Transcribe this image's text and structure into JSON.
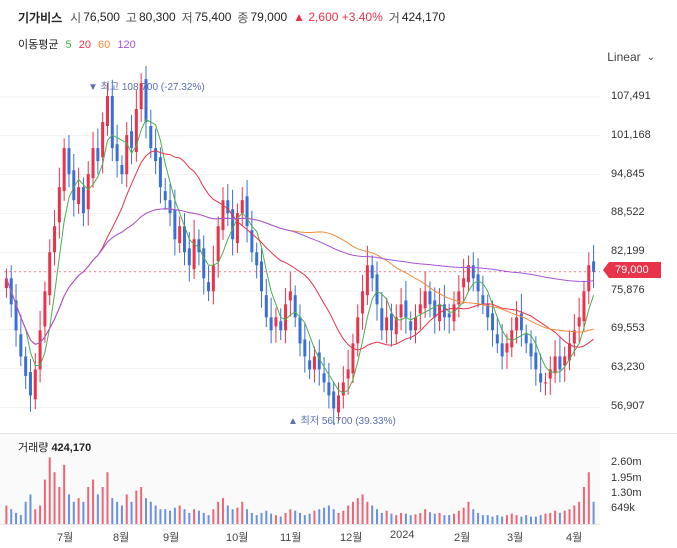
{
  "header": {
    "name": "기가비스",
    "open_label": "시",
    "open": "76,500",
    "high_label": "고",
    "high": "80,300",
    "low_label": "저",
    "low": "75,400",
    "close_label": "종",
    "close": "79,000",
    "change": "▲ 2,600 +3.40%",
    "volume_label": "거",
    "volume": "424,170"
  },
  "ma": {
    "label": "이동평균",
    "p5": "5",
    "p20": "20",
    "p60": "60",
    "p120": "120",
    "colors": {
      "p5": "#4caf50",
      "p20": "#e8334a",
      "p60": "#f08c3c",
      "p120": "#a457d8"
    }
  },
  "scale_selector": "Linear",
  "price_tag": "79,000",
  "y_axis": [
    "107,491",
    "101,168",
    "94,845",
    "88,522",
    "82,199",
    "75,876",
    "69,553",
    "63,230",
    "56,907"
  ],
  "annotations": {
    "high": "▼ 최고 108,700 (-27.32%)",
    "low": "▲ 최저 56,700 (39.33%)"
  },
  "volume": {
    "title": "거래량",
    "value": "424,170",
    "axis": [
      "2.60m",
      "1.95m",
      "1.30m",
      "649k"
    ]
  },
  "x_axis": [
    "7월",
    "8월",
    "9월",
    "10월",
    "11월",
    "12월",
    "2024",
    "2월",
    "3월",
    "4월"
  ],
  "chart_data": {
    "type": "candlestick",
    "y_range": [
      55000,
      110000
    ],
    "up_color": "#e8334a",
    "down_color": "#3b6fd4",
    "close": [
      78000,
      74000,
      70000,
      66000,
      63000,
      60000,
      64000,
      70000,
      76000,
      82000,
      86000,
      92000,
      98000,
      94000,
      90000,
      92000,
      88000,
      94000,
      98000,
      96000,
      102000,
      106000,
      98000,
      96000,
      94000,
      100000,
      98000,
      104000,
      108000,
      102000,
      98000,
      96000,
      92000,
      90000,
      88000,
      84000,
      86000,
      82000,
      80000,
      84000,
      82000,
      78000,
      76000,
      80000,
      86000,
      90000,
      88000,
      84000,
      88000,
      90000,
      86000,
      82000,
      80000,
      76000,
      72000,
      70000,
      72000,
      70000,
      74000,
      76000,
      72000,
      68000,
      66000,
      64000,
      66000,
      64000,
      62000,
      60000,
      58000,
      60000,
      62000,
      64000,
      68000,
      72000,
      76000,
      80000,
      78000,
      74000,
      70000,
      72000,
      70000,
      72000,
      74000,
      72000,
      70000,
      72000,
      74000,
      76000,
      74000,
      72000,
      74000,
      72000,
      72000,
      74000,
      76000,
      78000,
      80000,
      78000,
      76000,
      74000,
      72000,
      70000,
      68000,
      66000,
      68000,
      70000,
      72000,
      70000,
      68000,
      66000,
      64000,
      62000,
      62000,
      64000,
      66000,
      64000,
      66000,
      68000,
      70000,
      72000,
      76000,
      80000,
      79000
    ],
    "volume": [
      0.25,
      0.2,
      0.15,
      0.12,
      0.3,
      0.4,
      0.2,
      0.25,
      0.6,
      0.9,
      0.7,
      0.5,
      0.8,
      0.4,
      0.3,
      0.35,
      0.3,
      0.5,
      0.6,
      0.4,
      0.5,
      0.7,
      0.35,
      0.3,
      0.25,
      0.4,
      0.3,
      0.45,
      0.5,
      0.35,
      0.3,
      0.25,
      0.2,
      0.2,
      0.18,
      0.22,
      0.25,
      0.2,
      0.15,
      0.2,
      0.18,
      0.15,
      0.12,
      0.2,
      0.3,
      0.35,
      0.25,
      0.2,
      0.22,
      0.3,
      0.2,
      0.15,
      0.12,
      0.15,
      0.18,
      0.14,
      0.12,
      0.1,
      0.15,
      0.2,
      0.18,
      0.15,
      0.12,
      0.14,
      0.18,
      0.2,
      0.22,
      0.25,
      0.2,
      0.15,
      0.18,
      0.25,
      0.3,
      0.35,
      0.4,
      0.3,
      0.25,
      0.2,
      0.15,
      0.18,
      0.14,
      0.12,
      0.15,
      0.14,
      0.12,
      0.13,
      0.15,
      0.2,
      0.16,
      0.14,
      0.15,
      0.12,
      0.12,
      0.14,
      0.18,
      0.22,
      0.3,
      0.2,
      0.15,
      0.12,
      0.12,
      0.1,
      0.12,
      0.1,
      0.12,
      0.14,
      0.12,
      0.1,
      0.12,
      0.1,
      0.1,
      0.12,
      0.14,
      0.15,
      0.18,
      0.15,
      0.18,
      0.2,
      0.25,
      0.3,
      0.5,
      0.7,
      0.3
    ]
  }
}
